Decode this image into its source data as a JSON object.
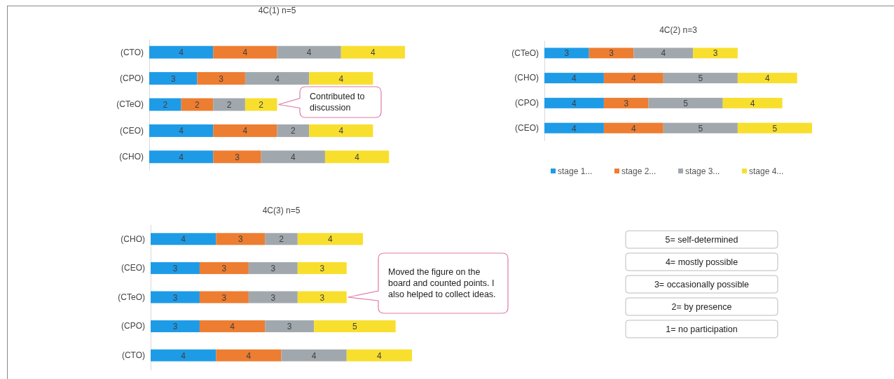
{
  "chart_data": [
    {
      "type": "bar",
      "orientation": "horizontal",
      "stacked": true,
      "title": "4C(1) n=5",
      "categories": [
        "(CTO)",
        "(CPO)",
        "(CTeO)",
        "(CEO)",
        "(CHO)"
      ],
      "tick_labels": "y",
      "data_labels": true,
      "legend": false,
      "series": [
        {
          "color": "#1e9be6",
          "values": [
            4,
            3,
            2,
            4,
            4
          ]
        },
        {
          "color": "#ed7d31",
          "values": [
            4,
            3,
            2,
            4,
            3
          ]
        },
        {
          "color": "#a1a8ad",
          "values": [
            4,
            4,
            2,
            2,
            4
          ]
        },
        {
          "color": "#f8df2e",
          "values": [
            4,
            4,
            2,
            4,
            4
          ]
        }
      ],
      "annotations": [
        "Contributed to discussion"
      ]
    },
    {
      "type": "bar",
      "orientation": "horizontal",
      "stacked": true,
      "title": "4C(2) n=3",
      "categories": [
        "(CTeO)",
        "(CHO)",
        "(CPO)",
        "(CEO)"
      ],
      "tick_labels": "y",
      "data_labels": true,
      "legend": "bottom",
      "series": [
        {
          "name": "stage 1...",
          "color": "#1e9be6",
          "values": [
            3,
            4,
            4,
            4
          ]
        },
        {
          "name": "stage 2...",
          "color": "#ed7d31",
          "values": [
            3,
            4,
            3,
            4
          ]
        },
        {
          "name": "stage 3...",
          "color": "#a1a8ad",
          "values": [
            4,
            5,
            5,
            5
          ]
        },
        {
          "name": "stage 4...",
          "color": "#f8df2e",
          "values": [
            3,
            4,
            4,
            5
          ]
        }
      ]
    },
    {
      "type": "bar",
      "orientation": "horizontal",
      "stacked": true,
      "title": "4C(3) n=5",
      "categories": [
        "(CHO)",
        "(CEO)",
        "(CTeO)",
        "(CPO)",
        "(CTO)"
      ],
      "tick_labels": "y",
      "data_labels": true,
      "legend": false,
      "series": [
        {
          "color": "#1e9be6",
          "values": [
            4,
            3,
            3,
            3,
            4
          ]
        },
        {
          "color": "#ed7d31",
          "values": [
            3,
            3,
            3,
            4,
            4
          ]
        },
        {
          "color": "#a1a8ad",
          "values": [
            2,
            3,
            3,
            3,
            4
          ]
        },
        {
          "color": "#f8df2e",
          "values": [
            4,
            3,
            3,
            5,
            4
          ]
        }
      ],
      "annotations": [
        "Moved the figure on the board and counted points. I also helped to collect ideas."
      ]
    },
    {
      "type": "other",
      "annotations": [
        "5= self-determined",
        "4= mostly possible",
        "3= occasionally possible",
        "2= by presence",
        "1= no participation"
      ]
    }
  ]
}
